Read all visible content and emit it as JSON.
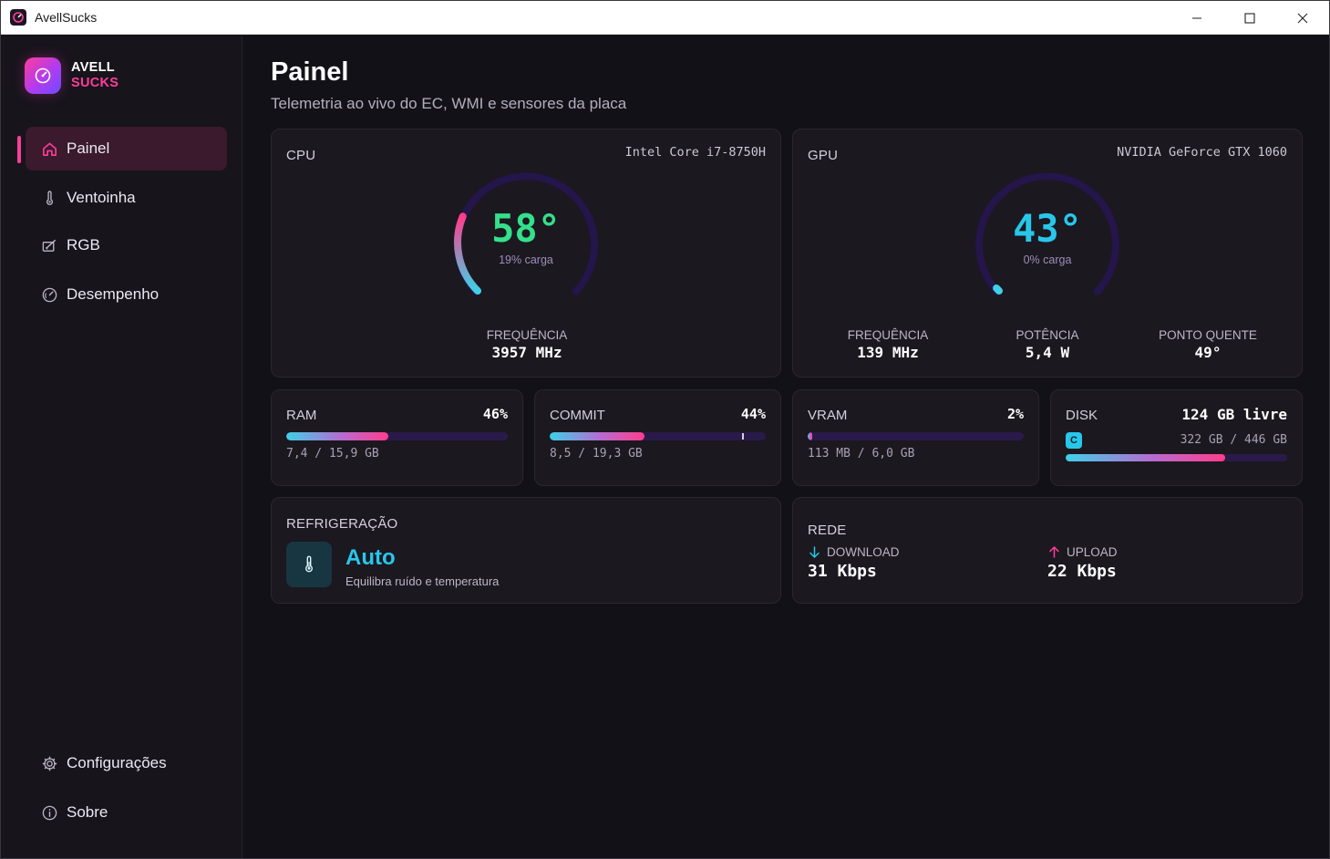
{
  "window": {
    "title": "AvellSucks"
  },
  "brand": {
    "line1": "AVELL",
    "line2": "SUCKS"
  },
  "sidebar": {
    "items": [
      {
        "label": "Painel",
        "icon": "home-icon",
        "active": true
      },
      {
        "label": "Ventoinha",
        "icon": "thermometer-icon"
      },
      {
        "label": "RGB",
        "icon": "rgb-icon"
      },
      {
        "label": "Desempenho",
        "icon": "gauge-icon"
      }
    ],
    "footer": [
      {
        "label": "Configurações",
        "icon": "gear-icon"
      },
      {
        "label": "Sobre",
        "icon": "info-icon"
      }
    ]
  },
  "page": {
    "title": "Painel",
    "subtitle": "Telemetria ao vivo do EC, WMI e sensores da placa"
  },
  "cpu": {
    "label": "CPU",
    "model": "Intel Core i7-8750H",
    "temp": "58°",
    "load": "19% carga",
    "load_fraction": 0.19,
    "freq_label": "FREQUÊNCIA",
    "freq_value": "3957 MHz"
  },
  "gpu": {
    "label": "GPU",
    "model": "NVIDIA GeForce GTX 1060",
    "temp": "43°",
    "load": "0% carga",
    "load_fraction": 0.0,
    "freq_label": "FREQUÊNCIA",
    "freq_value": "139 MHz",
    "power_label": "POTÊNCIA",
    "power_value": "5,4 W",
    "hotspot_label": "PONTO QUENTE",
    "hotspot_value": "49°"
  },
  "ram": {
    "label": "RAM",
    "pct": "46%",
    "fraction": 0.46,
    "detail": "7,4 / 15,9 GB"
  },
  "commit": {
    "label": "COMMIT",
    "pct": "44%",
    "fraction": 0.44,
    "detail": "8,5 / 19,3 GB"
  },
  "vram": {
    "label": "VRAM",
    "pct": "2%",
    "fraction": 0.02,
    "detail": "113 MB / 6,0 GB"
  },
  "disk": {
    "label": "DISK",
    "free": "124 GB livre",
    "drive": "C",
    "detail": "322 GB / 446 GB",
    "fraction": 0.72
  },
  "cooling": {
    "label": "REFRIGERAÇÃO",
    "mode": "Auto",
    "desc": "Equilibra ruído e temperatura"
  },
  "network": {
    "label": "REDE",
    "download_label": "DOWNLOAD",
    "download_value": "31 Kbps",
    "upload_label": "UPLOAD",
    "upload_value": "22 Kbps"
  },
  "colors": {
    "accent_pink": "#ff3d9a",
    "accent_cyan": "#28c7ea",
    "cpu_temp": "#34e08a",
    "gpu_temp": "#28c7ea"
  }
}
